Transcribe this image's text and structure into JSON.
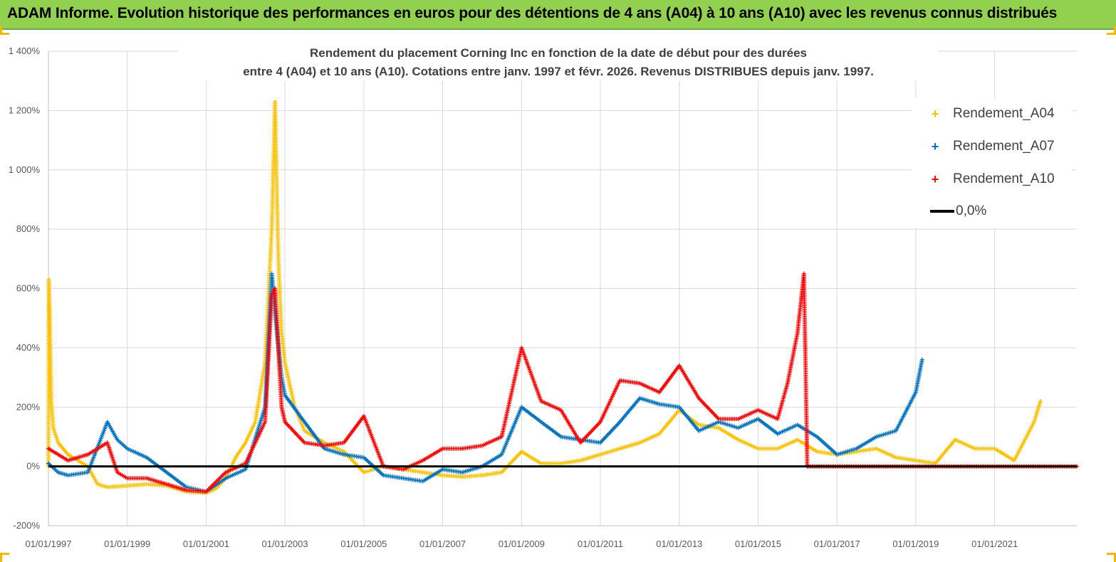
{
  "banner": {
    "title": "ADAM Informe. Evolution historique des performances en euros pour des détentions de 4 ans (A04) à 10 ans (A10) avec les revenus connus distribués"
  },
  "chart_data": {
    "type": "scatter",
    "title_line1": "Rendement du placement Corning Inc en fonction de la date de début pour des durées",
    "title_line2": "entre 4 (A04) et 10 ans (A10).  Cotations entre janv. 1997 et févr. 2026. Revenus DISTRIBUES depuis janv. 1997.",
    "x_axis": {
      "type": "date",
      "range": [
        "1997-01-01",
        "2023-02-01"
      ],
      "tick_labels": [
        "01/01/1997",
        "01/01/1999",
        "01/01/2001",
        "01/01/2003",
        "01/01/2005",
        "01/01/2007",
        "01/01/2009",
        "01/01/2011",
        "01/01/2013",
        "01/01/2015",
        "01/01/2017",
        "01/01/2019",
        "01/01/2021"
      ]
    },
    "y_axis": {
      "range": [
        -200,
        1400
      ],
      "ticks": [
        -200,
        0,
        200,
        400,
        600,
        800,
        1000,
        1200,
        1400
      ],
      "tick_labels": [
        "-200%",
        "0%",
        "200%",
        "400%",
        "600%",
        "800%",
        "1 000%",
        "1 200%",
        "1 400%"
      ]
    },
    "grid": true,
    "legend_position": "top-right",
    "series": [
      {
        "name": "Rendement_A04",
        "color": "#ffc000",
        "marker": "plus",
        "points": [
          [
            "1997-01-01",
            0
          ],
          [
            "1997-01-05",
            630
          ],
          [
            "1997-01-12",
            520
          ],
          [
            "1997-01-20",
            380
          ],
          [
            "1997-01-28",
            220
          ],
          [
            "1997-02-15",
            130
          ],
          [
            "1997-04-01",
            80
          ],
          [
            "1997-07-01",
            40
          ],
          [
            "1998-01-01",
            0
          ],
          [
            "1998-04-01",
            -60
          ],
          [
            "1998-07-01",
            -70
          ],
          [
            "1999-01-01",
            -65
          ],
          [
            "1999-07-01",
            -60
          ],
          [
            "2000-01-01",
            -65
          ],
          [
            "2000-07-01",
            -85
          ],
          [
            "2001-01-01",
            -90
          ],
          [
            "2001-04-01",
            -75
          ],
          [
            "2001-07-01",
            -40
          ],
          [
            "2001-10-01",
            30
          ],
          [
            "2002-01-01",
            80
          ],
          [
            "2002-04-01",
            150
          ],
          [
            "2002-07-01",
            350
          ],
          [
            "2002-09-01",
            800
          ],
          [
            "2002-10-01",
            1230
          ],
          [
            "2002-11-01",
            700
          ],
          [
            "2002-12-01",
            450
          ],
          [
            "2003-01-01",
            350
          ],
          [
            "2003-04-01",
            200
          ],
          [
            "2003-07-01",
            120
          ],
          [
            "2004-01-01",
            80
          ],
          [
            "2004-07-01",
            50
          ],
          [
            "2005-01-01",
            -20
          ],
          [
            "2005-07-01",
            0
          ],
          [
            "2006-01-01",
            -10
          ],
          [
            "2006-07-01",
            -20
          ],
          [
            "2007-01-01",
            -30
          ],
          [
            "2007-07-01",
            -35
          ],
          [
            "2008-01-01",
            -30
          ],
          [
            "2008-07-01",
            -20
          ],
          [
            "2009-01-01",
            50
          ],
          [
            "2009-07-01",
            10
          ],
          [
            "2010-01-01",
            10
          ],
          [
            "2010-07-01",
            20
          ],
          [
            "2011-01-01",
            40
          ],
          [
            "2011-07-01",
            60
          ],
          [
            "2012-01-01",
            80
          ],
          [
            "2012-07-01",
            110
          ],
          [
            "2013-01-01",
            190
          ],
          [
            "2013-07-01",
            140
          ],
          [
            "2014-01-01",
            130
          ],
          [
            "2014-07-01",
            90
          ],
          [
            "2015-01-01",
            60
          ],
          [
            "2015-07-01",
            60
          ],
          [
            "2016-01-01",
            90
          ],
          [
            "2016-07-01",
            50
          ],
          [
            "2017-01-01",
            40
          ],
          [
            "2017-07-01",
            50
          ],
          [
            "2018-01-01",
            60
          ],
          [
            "2018-07-01",
            30
          ],
          [
            "2019-01-01",
            20
          ],
          [
            "2019-07-01",
            10
          ],
          [
            "2020-01-01",
            90
          ],
          [
            "2020-07-01",
            60
          ],
          [
            "2021-01-01",
            60
          ],
          [
            "2021-07-01",
            20
          ],
          [
            "2022-01-01",
            150
          ],
          [
            "2022-03-01",
            220
          ]
        ]
      },
      {
        "name": "Rendement_A07",
        "color": "#0070c0",
        "marker": "plus",
        "points": [
          [
            "1997-01-01",
            10
          ],
          [
            "1997-04-01",
            -20
          ],
          [
            "1997-07-01",
            -30
          ],
          [
            "1998-01-01",
            -20
          ],
          [
            "1998-07-01",
            150
          ],
          [
            "1998-10-01",
            90
          ],
          [
            "1999-01-01",
            60
          ],
          [
            "1999-07-01",
            30
          ],
          [
            "2000-01-01",
            -20
          ],
          [
            "2000-07-01",
            -70
          ],
          [
            "2001-01-01",
            -85
          ],
          [
            "2001-07-01",
            -40
          ],
          [
            "2002-01-01",
            -10
          ],
          [
            "2002-07-01",
            200
          ],
          [
            "2002-09-01",
            650
          ],
          [
            "2002-10-01",
            520
          ],
          [
            "2002-12-01",
            300
          ],
          [
            "2003-01-01",
            240
          ],
          [
            "2003-07-01",
            150
          ],
          [
            "2004-01-01",
            60
          ],
          [
            "2004-07-01",
            40
          ],
          [
            "2005-01-01",
            30
          ],
          [
            "2005-07-01",
            -30
          ],
          [
            "2006-01-01",
            -40
          ],
          [
            "2006-07-01",
            -50
          ],
          [
            "2007-01-01",
            -10
          ],
          [
            "2007-07-01",
            -20
          ],
          [
            "2008-01-01",
            0
          ],
          [
            "2008-07-01",
            40
          ],
          [
            "2009-01-01",
            200
          ],
          [
            "2009-07-01",
            150
          ],
          [
            "2010-01-01",
            100
          ],
          [
            "2010-07-01",
            90
          ],
          [
            "2011-01-01",
            80
          ],
          [
            "2011-07-01",
            150
          ],
          [
            "2012-01-01",
            230
          ],
          [
            "2012-07-01",
            210
          ],
          [
            "2013-01-01",
            200
          ],
          [
            "2013-07-01",
            120
          ],
          [
            "2014-01-01",
            150
          ],
          [
            "2014-07-01",
            130
          ],
          [
            "2015-01-01",
            160
          ],
          [
            "2015-07-01",
            110
          ],
          [
            "2016-01-01",
            140
          ],
          [
            "2016-07-01",
            100
          ],
          [
            "2017-01-01",
            40
          ],
          [
            "2017-07-01",
            60
          ],
          [
            "2018-01-01",
            100
          ],
          [
            "2018-07-01",
            120
          ],
          [
            "2019-01-01",
            250
          ],
          [
            "2019-03-01",
            360
          ]
        ]
      },
      {
        "name": "Rendement_A10",
        "color": "#ff0000",
        "marker": "plus",
        "points": [
          [
            "1997-01-01",
            60
          ],
          [
            "1997-07-01",
            20
          ],
          [
            "1998-01-01",
            40
          ],
          [
            "1998-07-01",
            80
          ],
          [
            "1998-10-01",
            -20
          ],
          [
            "1999-01-01",
            -40
          ],
          [
            "1999-07-01",
            -40
          ],
          [
            "2000-01-01",
            -60
          ],
          [
            "2000-07-01",
            -80
          ],
          [
            "2001-01-01",
            -85
          ],
          [
            "2001-07-01",
            -20
          ],
          [
            "2002-01-01",
            10
          ],
          [
            "2002-07-01",
            150
          ],
          [
            "2002-09-01",
            580
          ],
          [
            "2002-10-01",
            600
          ],
          [
            "2002-12-01",
            200
          ],
          [
            "2003-01-01",
            150
          ],
          [
            "2003-07-01",
            80
          ],
          [
            "2004-01-01",
            70
          ],
          [
            "2004-07-01",
            80
          ],
          [
            "2005-01-01",
            170
          ],
          [
            "2005-07-01",
            0
          ],
          [
            "2006-01-01",
            -10
          ],
          [
            "2006-07-01",
            20
          ],
          [
            "2007-01-01",
            60
          ],
          [
            "2007-07-01",
            60
          ],
          [
            "2008-01-01",
            70
          ],
          [
            "2008-07-01",
            100
          ],
          [
            "2009-01-01",
            400
          ],
          [
            "2009-07-01",
            220
          ],
          [
            "2010-01-01",
            190
          ],
          [
            "2010-07-01",
            80
          ],
          [
            "2011-01-01",
            150
          ],
          [
            "2011-07-01",
            290
          ],
          [
            "2012-01-01",
            280
          ],
          [
            "2012-07-01",
            250
          ],
          [
            "2013-01-01",
            340
          ],
          [
            "2013-07-01",
            230
          ],
          [
            "2014-01-01",
            160
          ],
          [
            "2014-07-01",
            160
          ],
          [
            "2015-01-01",
            190
          ],
          [
            "2015-07-01",
            160
          ],
          [
            "2015-10-01",
            280
          ],
          [
            "2016-01-01",
            450
          ],
          [
            "2016-03-01",
            650
          ],
          [
            "2016-04-01",
            0
          ],
          [
            "2018-01-01",
            0
          ],
          [
            "2020-01-01",
            0
          ],
          [
            "2023-02-01",
            0
          ]
        ]
      },
      {
        "name": "0,0%",
        "color": "#000000",
        "marker": "line",
        "points": [
          [
            "1997-01-01",
            0
          ],
          [
            "2023-02-01",
            0
          ]
        ]
      }
    ]
  }
}
